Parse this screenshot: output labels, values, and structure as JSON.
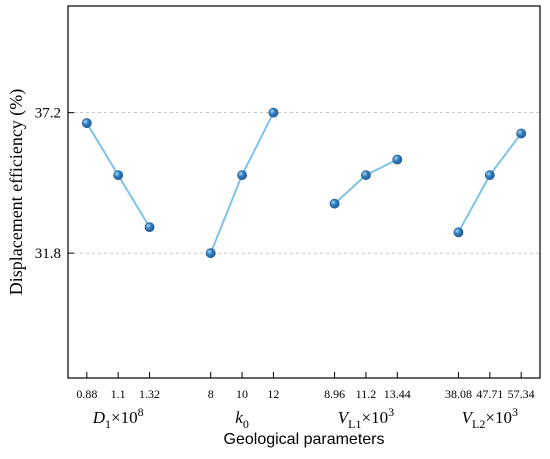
{
  "chart_data": {
    "type": "line",
    "xlabel": "Geological parameters",
    "ylabel": "Displacement efficiency (%)",
    "yticks": [
      31.8,
      37.2
    ],
    "ytick_labels": [
      "31.8",
      "37.2"
    ],
    "ylim": [
      27.0,
      41.3
    ],
    "grid": "horizontal dashed at y ticks",
    "line_color": "#7ec3e6",
    "marker_color": "#1f5f9e",
    "groups": [
      {
        "label_main": "D",
        "label_sub": "1",
        "label_suffix": "×10",
        "label_sup": "8",
        "italic_main": true,
        "categories": [
          "0.88",
          "1.1",
          "1.32"
        ],
        "values": [
          36.8,
          34.8,
          32.8
        ]
      },
      {
        "label_main": "k",
        "label_sub": "0",
        "label_suffix": "",
        "label_sup": "",
        "italic_main": true,
        "categories": [
          "8",
          "10",
          "12"
        ],
        "values": [
          31.8,
          34.8,
          37.2
        ]
      },
      {
        "label_main": "V",
        "label_sub": "L1",
        "label_suffix": "×10",
        "label_sup": "3",
        "italic_main": true,
        "categories": [
          "8.96",
          "11.2",
          "13.44"
        ],
        "values": [
          33.7,
          34.8,
          35.4
        ]
      },
      {
        "label_main": "V",
        "label_sub": "L2",
        "label_suffix": "×10",
        "label_sup": "3",
        "italic_main": true,
        "categories": [
          "38.08",
          "47.71",
          "57.34"
        ],
        "values": [
          32.6,
          34.8,
          36.4
        ]
      }
    ]
  }
}
